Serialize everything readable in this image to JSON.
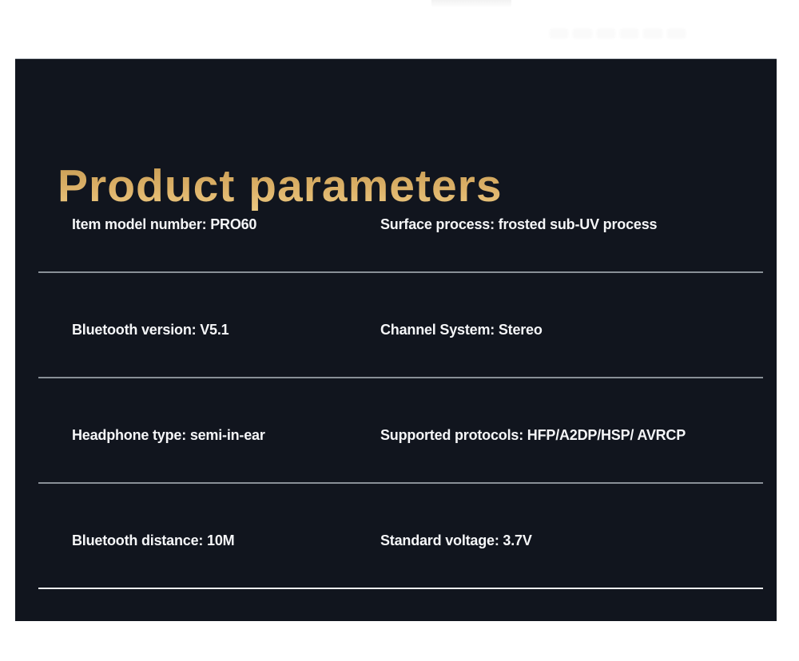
{
  "page": {
    "background": "#ffffff"
  },
  "card": {
    "background": "#11151e",
    "title": "Product parameters",
    "title_gradient": [
      "#c59a52",
      "#ecca83"
    ],
    "text_color": "#f5f6f8",
    "divider_color": "#899097",
    "last_divider_color": "#eef0f2",
    "rows": [
      {
        "left": "Item model number: PRO60",
        "right": "Surface process: frosted sub-UV process"
      },
      {
        "left": "Bluetooth version: V5.1",
        "right": "Channel System: Stereo"
      },
      {
        "left": "Headphone type: semi-in-ear",
        "right": "Supported protocols: HFP/A2DP/HSP/ AVRCP"
      },
      {
        "left": "Bluetooth distance: 10M",
        "right": "Standard voltage: 3.7V"
      }
    ]
  }
}
